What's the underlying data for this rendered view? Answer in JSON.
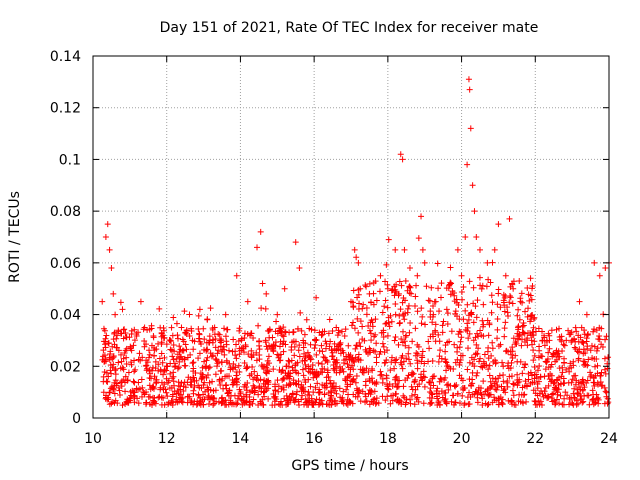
{
  "chart_data": {
    "type": "scatter",
    "title": "Day 151 of 2021, Rate Of TEC Index for receiver mate",
    "xlabel": "GPS time / hours",
    "ylabel": "ROTI / TECUs",
    "xlim": [
      10,
      24
    ],
    "ylim": [
      0,
      0.14
    ],
    "x_ticks": [
      10,
      12,
      14,
      16,
      18,
      20,
      22,
      24
    ],
    "x_tick_labels": [
      "10",
      "12",
      "14",
      "16",
      "18",
      "20",
      "22",
      "24"
    ],
    "y_ticks": [
      0,
      0.02,
      0.04,
      0.06,
      0.08,
      0.1,
      0.12,
      0.14
    ],
    "y_tick_labels": [
      "0",
      "0.02",
      "0.04",
      "0.06",
      "0.08",
      "0.1",
      "0.12",
      "0.14"
    ],
    "grid": true,
    "marker": "+",
    "series": [
      {
        "name": "ROTI",
        "color": "#ff0000",
        "x": [
          10.25,
          10.35,
          10.4,
          10.45,
          10.5,
          10.55,
          10.6,
          10.8,
          11.3,
          11.4,
          11.6,
          11.9,
          12.1,
          12.4,
          12.7,
          12.9,
          13.1,
          13.3,
          13.6,
          13.9,
          14.2,
          14.45,
          14.55,
          14.6,
          14.7,
          15.0,
          15.2,
          15.5,
          15.6,
          15.8,
          16.2,
          16.6,
          17.0,
          17.1,
          17.2,
          17.25,
          17.5,
          17.8,
          18.0,
          18.2,
          18.3,
          18.35,
          18.4,
          18.45,
          18.6,
          18.8,
          18.9,
          18.95,
          19.0,
          19.3,
          19.6,
          19.9,
          20.0,
          20.1,
          20.15,
          20.2,
          20.22,
          20.25,
          20.3,
          20.35,
          20.4,
          20.5,
          20.7,
          20.9,
          21.0,
          21.2,
          21.3,
          21.4,
          21.6,
          21.9,
          22.2,
          22.5,
          22.8,
          23.0,
          23.2,
          23.4,
          23.6,
          23.75,
          23.9,
          24.0
        ],
        "y": [
          0.045,
          0.07,
          0.075,
          0.065,
          0.058,
          0.048,
          0.04,
          0.042,
          0.045,
          0.035,
          0.028,
          0.032,
          0.03,
          0.035,
          0.03,
          0.042,
          0.038,
          0.035,
          0.04,
          0.055,
          0.045,
          0.066,
          0.072,
          0.052,
          0.048,
          0.04,
          0.05,
          0.068,
          0.058,
          0.038,
          0.032,
          0.035,
          0.045,
          0.065,
          0.06,
          0.05,
          0.048,
          0.055,
          0.05,
          0.065,
          0.048,
          0.102,
          0.1,
          0.065,
          0.058,
          0.055,
          0.078,
          0.065,
          0.06,
          0.045,
          0.042,
          0.065,
          0.055,
          0.07,
          0.098,
          0.131,
          0.127,
          0.112,
          0.09,
          0.08,
          0.07,
          0.065,
          0.06,
          0.065,
          0.075,
          0.055,
          0.077,
          0.05,
          0.045,
          0.03,
          0.03,
          0.025,
          0.028,
          0.03,
          0.045,
          0.04,
          0.06,
          0.055,
          0.058,
          0.06
        ]
      }
    ],
    "baseline_band": {
      "description": "dense cloud of points between roughly 0.005 and 0.035 TECU across the whole time range",
      "x_range": [
        10.25,
        24
      ],
      "typical_y_range": [
        0.005,
        0.035
      ]
    }
  }
}
